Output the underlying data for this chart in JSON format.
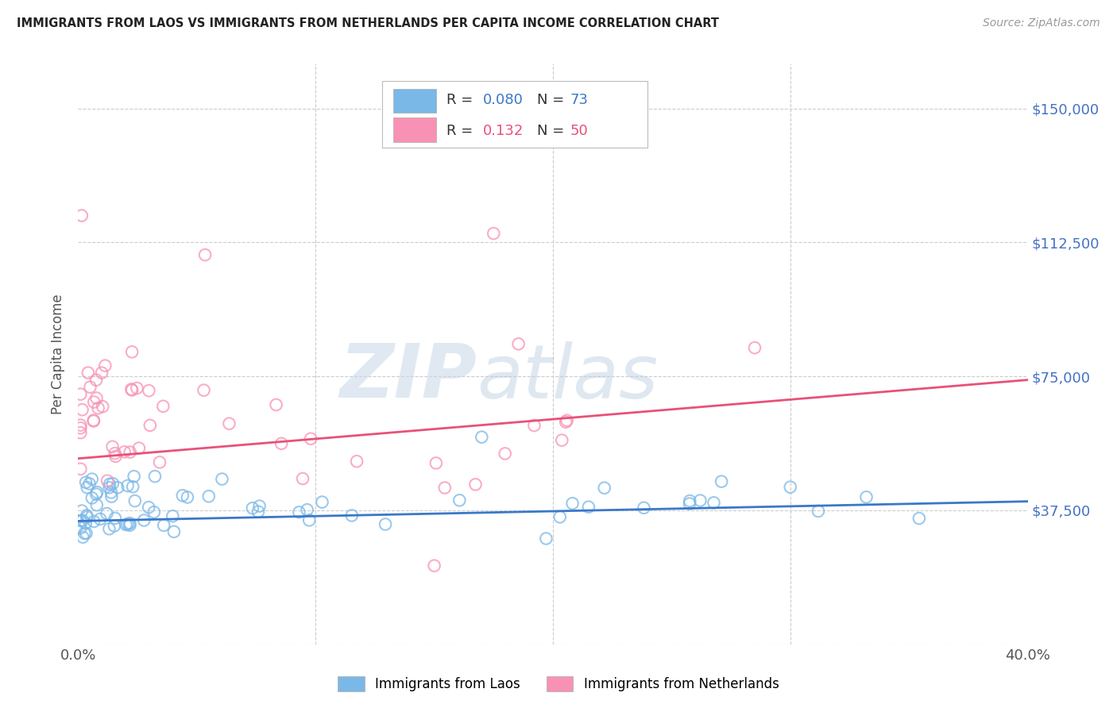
{
  "title": "IMMIGRANTS FROM LAOS VS IMMIGRANTS FROM NETHERLANDS PER CAPITA INCOME CORRELATION CHART",
  "source": "Source: ZipAtlas.com",
  "ylabel": "Per Capita Income",
  "xlim": [
    0.0,
    0.4
  ],
  "ylim": [
    0,
    162500
  ],
  "yticks": [
    0,
    37500,
    75000,
    112500,
    150000
  ],
  "ytick_labels": [
    "",
    "$37,500",
    "$75,000",
    "$112,500",
    "$150,000"
  ],
  "xticks": [
    0.0,
    0.1,
    0.2,
    0.3,
    0.4
  ],
  "xtick_labels": [
    "0.0%",
    "",
    "",
    "",
    "40.0%"
  ],
  "background_color": "#ffffff",
  "grid_color": "#cccccc",
  "blue_color": "#7ab8e8",
  "pink_color": "#f892b4",
  "blue_line_color": "#3a78c9",
  "pink_line_color": "#e8517a",
  "legend_R_blue": "0.080",
  "legend_N_blue": "73",
  "legend_R_pink": "0.132",
  "legend_N_pink": "50",
  "label_blue": "Immigrants from Laos",
  "label_pink": "Immigrants from Netherlands",
  "watermark_zip": "ZIP",
  "watermark_atlas": "atlas",
  "blue_trend_x": [
    0.0,
    0.4
  ],
  "blue_trend_y": [
    34500,
    40000
  ],
  "pink_trend_x": [
    0.0,
    0.4
  ],
  "pink_trend_y": [
    52000,
    74000
  ],
  "ytick_color": "#4472C4",
  "xtick_color": "#555555",
  "title_color": "#222222",
  "source_color": "#999999",
  "ylabel_color": "#555555"
}
